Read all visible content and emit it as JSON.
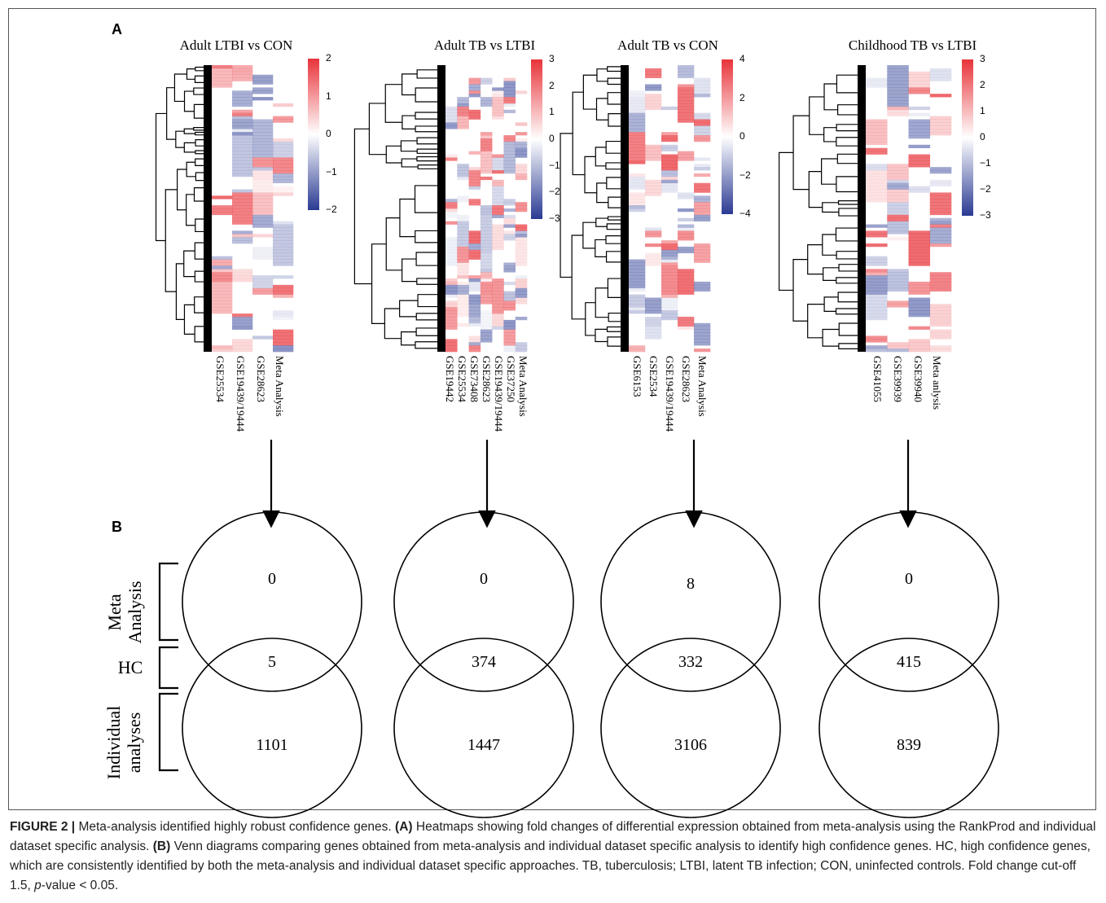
{
  "panel_a_label": "A",
  "panel_b_label": "B",
  "heatmaps": [
    {
      "title": "Adult LTBI vs CON",
      "columns": [
        "GSE25534",
        "GSE19439/19444",
        "GSE28623",
        "Meta Analysis"
      ],
      "colorbar_ticks": [
        "2",
        "1",
        "0",
        "−1",
        "−2"
      ]
    },
    {
      "title": "Adult TB vs LTBI",
      "columns": [
        "GSE19442",
        "GSE25534",
        "GSE73408",
        "GSE28623",
        "GSE19439/19444",
        "GSE37250",
        "Meta Analysis"
      ],
      "colorbar_ticks": [
        "3",
        "2",
        "1",
        "0",
        "−1",
        "−2",
        "−3"
      ]
    },
    {
      "title": "Adult TB vs CON",
      "columns": [
        "GSE6153",
        "GSE2534",
        "GSE19439/19444",
        "GSE28623",
        "Meta Analysis"
      ],
      "colorbar_ticks": [
        "4",
        "2",
        "0",
        "−2",
        "−4"
      ]
    },
    {
      "title": "Childhood TB vs LTBI",
      "columns": [
        "GSE41055",
        "GSE39939",
        "GSE39940",
        "Meta anlysis"
      ],
      "colorbar_ticks": [
        "3",
        "2",
        "1",
        "0",
        "−1",
        "−2",
        "−3"
      ]
    }
  ],
  "venn_groups": {
    "meta": "Meta Analysis",
    "hc": "HC",
    "individual": "Individual analyses"
  },
  "venns": [
    {
      "meta_only": "0",
      "hc": "5",
      "individual_only": "1101"
    },
    {
      "meta_only": "0",
      "hc": "374",
      "individual_only": "1447"
    },
    {
      "meta_only": "8",
      "hc": "332",
      "individual_only": "3106"
    },
    {
      "meta_only": "0",
      "hc": "415",
      "individual_only": "839"
    }
  ],
  "caption": {
    "figure_label": "FIGURE 2 |",
    "title": " Meta-analysis identified highly robust confidence genes. ",
    "a_label": "(A)",
    "a_text": " Heatmaps showing fold changes of differential expression obtained from meta-analysis using the RankProd and individual dataset specific analysis. ",
    "b_label": "(B)",
    "b_text": " Venn diagrams comparing genes obtained from meta-analysis and individual dataset specific analysis to identify high confidence genes. HC, high confidence genes, which are consistently identified by both the meta-analysis and individual dataset specific approaches. TB, tuberculosis; LTBI, latent TB infection; CON, uninfected controls. Fold change cut-off 1.5, ",
    "p_italic": "p",
    "p_text": "-value < 0.05."
  },
  "colors": {
    "heat_red": "#e8343a",
    "heat_blue": "#2a3a93",
    "heat_white": "#ffffff"
  }
}
